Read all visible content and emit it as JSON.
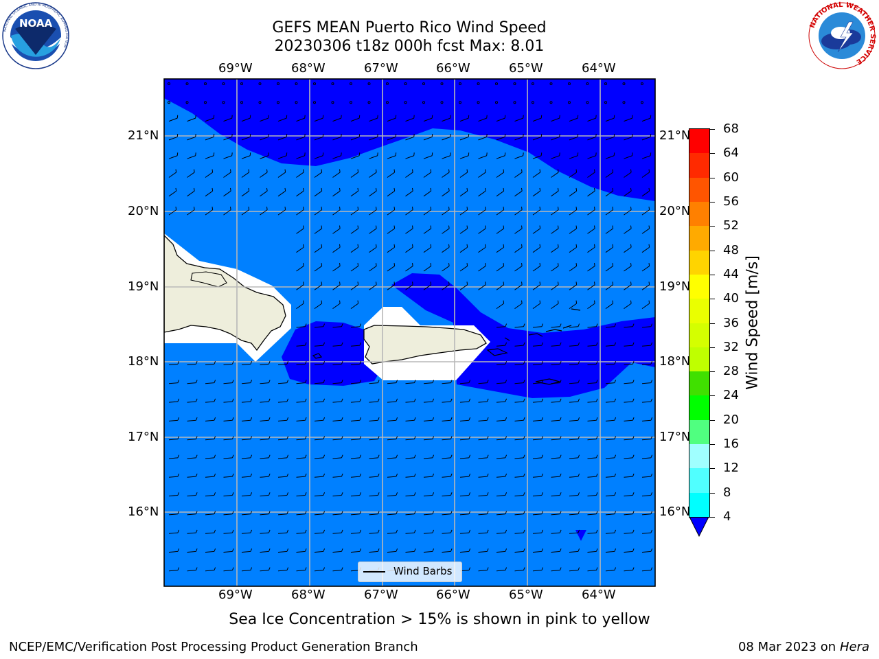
{
  "header": {
    "title_line1": "GEFS MEAN Puerto Rico Wind Speed",
    "title_line2": "20230306 t18z 000h fcst   Max: 8.01"
  },
  "logos": {
    "left": {
      "text": "NOAA",
      "ring_text": "NATIONAL OCEANIC AND ATMOSPHERIC ADMINISTRATION"
    },
    "right": {
      "ring_text": "NATIONAL WEATHER SERVICE"
    }
  },
  "map": {
    "lon_labels": [
      "69°W",
      "68°W",
      "67°W",
      "66°W",
      "65°W",
      "64°W"
    ],
    "lat_labels": [
      "21°N",
      "20°N",
      "19°N",
      "18°N",
      "17°N",
      "16°N"
    ],
    "legend_label": "Wind Barbs"
  },
  "colorbar": {
    "label": "Wind Speed [m/s]",
    "ticks": [
      "68",
      "64",
      "60",
      "56",
      "52",
      "48",
      "44",
      "40",
      "36",
      "32",
      "28",
      "24",
      "20",
      "16",
      "12",
      "8",
      "4"
    ],
    "colors": [
      "#ff0000",
      "#ff2a00",
      "#ff5500",
      "#ff8000",
      "#ffaa00",
      "#ffd400",
      "#ffff00",
      "#eaff00",
      "#d4ff00",
      "#bfff00",
      "#40e000",
      "#00ff00",
      "#50ff80",
      "#a0ffff",
      "#50ffff",
      "#00ffff",
      "#0080ff",
      "#0000ff"
    ]
  },
  "note": "Sea Ice Concentration > 15% is shown in pink to yellow",
  "footer": {
    "left": "NCEP/EMC/Verification Post Processing Product Generation Branch",
    "date": "08 Mar 2023 on",
    "machine": "Hera"
  }
}
